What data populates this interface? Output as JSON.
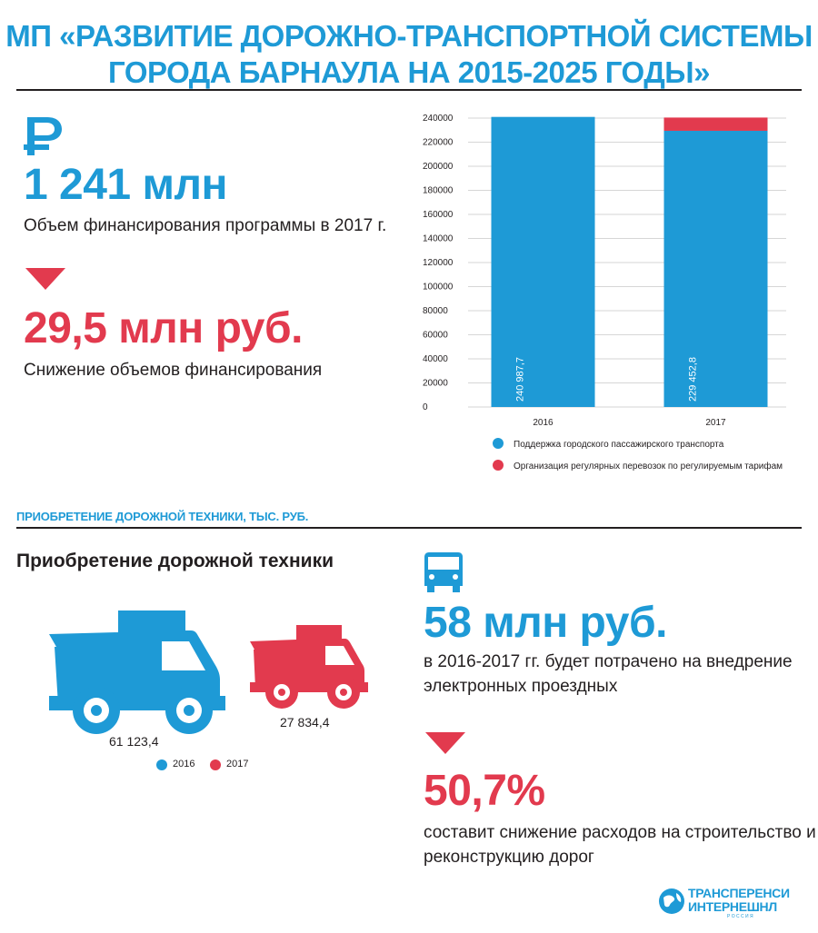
{
  "header": {
    "title_line1": "МП  «РАЗВИТИЕ ДОРОЖНО-ТРАНСПОРТНОЙ СИСТЕМЫ",
    "title_line2": "ГОРОДА БАРНАУЛА НА 2015-2025 ГОДЫ»"
  },
  "funding": {
    "icon": "ruble-icon",
    "amount": "1 241 млн",
    "description": "Объем финансирования программы в 2017 г."
  },
  "reduction": {
    "icon": "triangle-down-icon",
    "amount": "29,5 млн руб.",
    "description": "Снижение объемов финансирования"
  },
  "section": {
    "caption": "ПРИОБРЕТЕНИЕ ДОРОЖНОЙ ТЕХНИКИ, ТЫС. РУБ.",
    "heading": "Приобретение дорожной техники"
  },
  "trucks": {
    "value_2016": "61 123,4",
    "value_2017": "27 834,4",
    "legend_2016": "2016",
    "legend_2017": "2017"
  },
  "tickets": {
    "icon": "bus-icon",
    "amount": "58 млн руб.",
    "description_line1": "в 2016-2017 гг. будет потрачено на внедрение",
    "description_line2": "электронных проездных"
  },
  "roads": {
    "icon": "triangle-down-icon",
    "amount": "50,7%",
    "description_line1": "составит снижение расходов на строительство и",
    "description_line2": "реконструкцию дорог"
  },
  "logo": {
    "line1": "ТРАНСПЕРЕНСИ",
    "line2": "ИНТЕРНЕШНЛ",
    "line3": "Р О С С И Я"
  },
  "colors": {
    "blue": "#1e9ad6",
    "red": "#e23a4e",
    "dark": "#231f20"
  },
  "chart_data": [
    {
      "type": "bar",
      "stacked": true,
      "categories": [
        "2016",
        "2017"
      ],
      "series": [
        {
          "name": "Поддержка городского пассажирского транспорта",
          "color": "#1e9ad6",
          "values": [
            240987.7,
            229452.8
          ],
          "labels": [
            "240 987,7",
            "229 452,8"
          ]
        },
        {
          "name": "Организация регулярных перевозок по регулируемым тарифам",
          "color": "#e23a4e",
          "values": [
            0,
            11000
          ]
        }
      ],
      "ylim": [
        0,
        240000
      ],
      "yticks": [
        "0",
        "20000",
        "40000",
        "60000",
        "80000",
        "100000",
        "120000",
        "140000",
        "160000",
        "180000",
        "200000",
        "220000",
        "240000"
      ],
      "grid": true,
      "legend": "bottom"
    },
    {
      "type": "bar",
      "title": "Приобретение дорожной техники",
      "categories": [
        "2016",
        "2017"
      ],
      "values": [
        61123.4,
        27834.4
      ],
      "labels": [
        "61 123,4",
        "27 834,4"
      ],
      "colors": [
        "#1e9ad6",
        "#e23a4e"
      ],
      "legend": "bottom"
    }
  ]
}
